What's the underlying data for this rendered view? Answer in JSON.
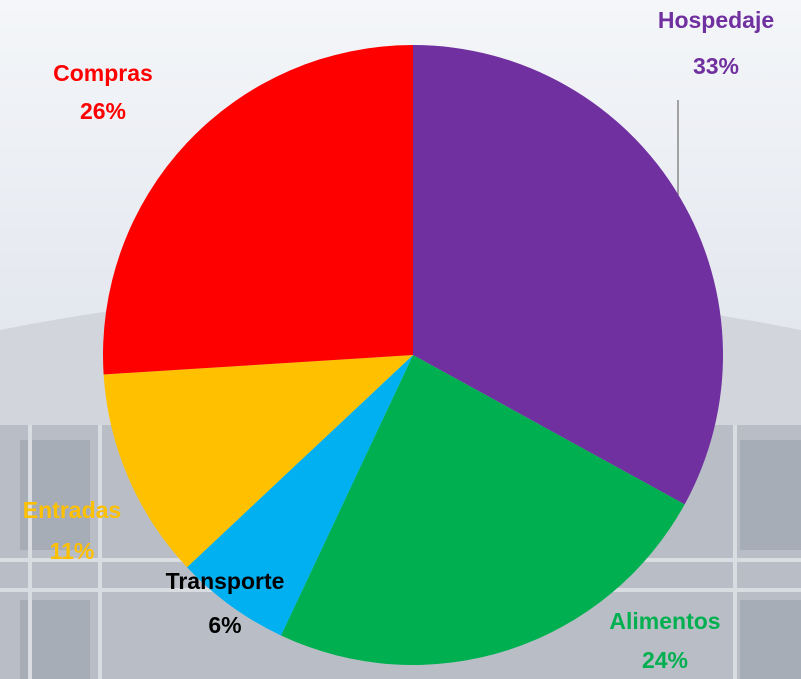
{
  "chart_data": {
    "type": "pie",
    "categories": [
      "Hospedaje",
      "Alimentos",
      "Transporte",
      "Entradas",
      "Compras"
    ],
    "values": [
      33,
      24,
      6,
      11,
      26
    ],
    "value_labels": [
      "33%",
      "24%",
      "6%",
      "11%",
      "26%"
    ],
    "colors": [
      "#7030a0",
      "#00b050",
      "#00b0f0",
      "#ffc000",
      "#ff0000"
    ],
    "label_colors": [
      "#7030a0",
      "#00b050",
      "#000000",
      "#ffc000",
      "#ff0000"
    ]
  }
}
